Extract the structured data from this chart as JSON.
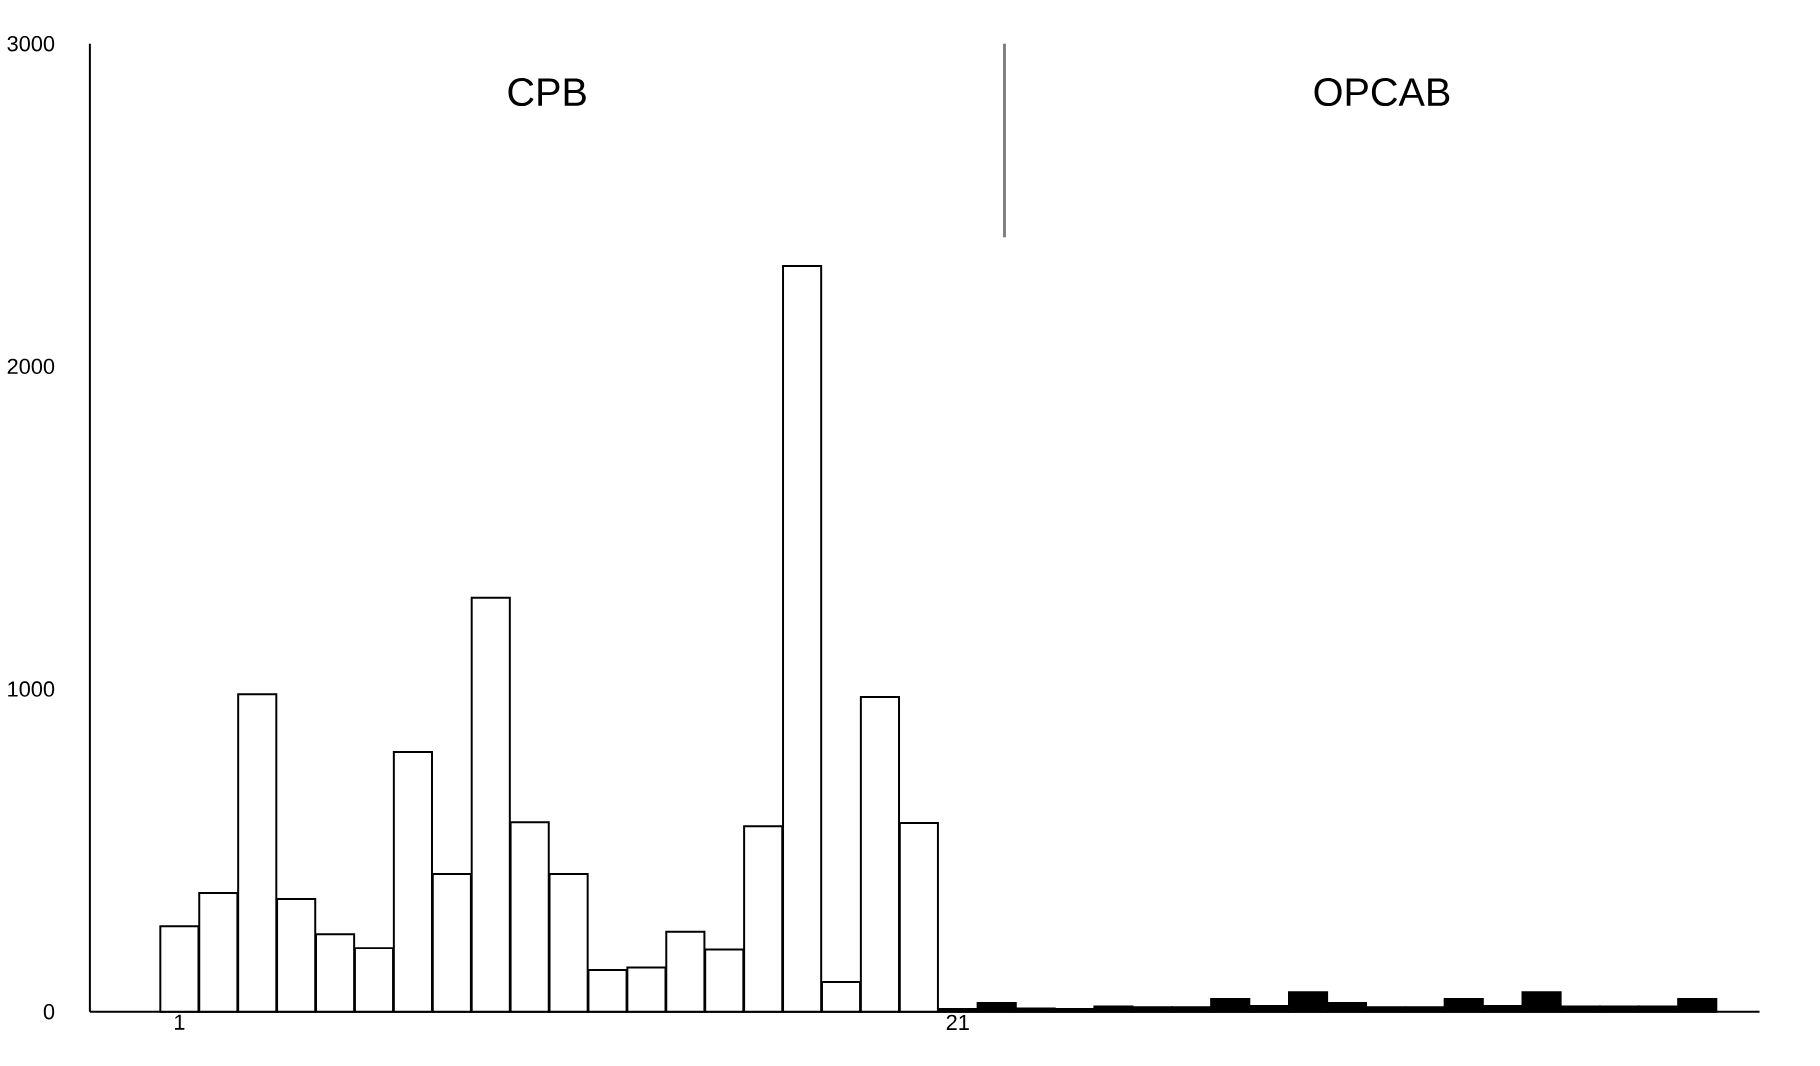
{
  "chart_data": {
    "type": "bar",
    "x": [
      1,
      2,
      3,
      4,
      5,
      6,
      7,
      8,
      9,
      10,
      11,
      12,
      13,
      14,
      15,
      16,
      17,
      18,
      19,
      20,
      21,
      22,
      23,
      24,
      25,
      26,
      27,
      28,
      29,
      30,
      31,
      32,
      33,
      34,
      35,
      36,
      37,
      38,
      39,
      40
    ],
    "values": [
      265,
      368,
      984,
      349,
      240,
      197,
      805,
      427,
      1283,
      587,
      427,
      129,
      137,
      248,
      193,
      575,
      2311,
      92,
      975,
      585,
      8,
      27,
      10,
      8,
      16,
      14,
      14,
      39,
      18,
      60,
      27,
      14,
      14,
      39,
      18,
      60,
      16,
      16,
      16,
      39
    ],
    "colors": [
      "#ffffff",
      "#ffffff",
      "#ffffff",
      "#ffffff",
      "#ffffff",
      "#ffffff",
      "#ffffff",
      "#ffffff",
      "#ffffff",
      "#ffffff",
      "#ffffff",
      "#ffffff",
      "#ffffff",
      "#ffffff",
      "#ffffff",
      "#ffffff",
      "#ffffff",
      "#ffffff",
      "#ffffff",
      "#ffffff",
      "#000000",
      "#000000",
      "#000000",
      "#000000",
      "#000000",
      "#000000",
      "#000000",
      "#000000",
      "#000000",
      "#000000",
      "#000000",
      "#000000",
      "#000000",
      "#000000",
      "#000000",
      "#000000",
      "#000000",
      "#000000",
      "#000000",
      "#000000"
    ],
    "xlim": [
      -1.3,
      41.6
    ],
    "xticks": [
      1,
      21
    ],
    "ylim": [
      0,
      3000
    ],
    "yticks": [
      0,
      1000,
      2000,
      3000
    ],
    "annotations": [
      "CPB",
      "OPCAB"
    ],
    "ref_lines": [
      {
        "axis": "x",
        "value": 22.2,
        "color": "#808080"
      }
    ]
  }
}
